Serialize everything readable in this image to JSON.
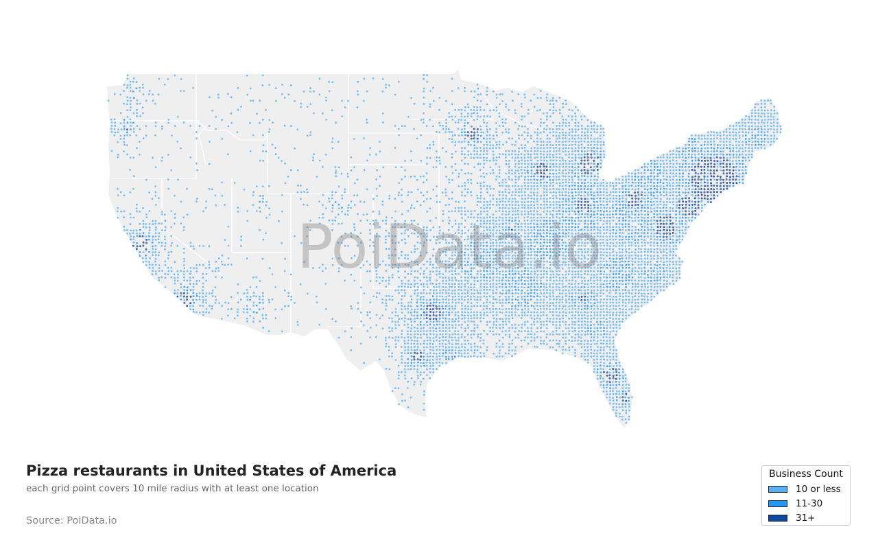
{
  "map": {
    "watermark": "PoiData.io",
    "land_color": "#efefef",
    "border_color": "#ffffff",
    "dot_colors": {
      "low": "#5ab0f5",
      "mid": "#2196f3",
      "high": "#0d3d8f"
    }
  },
  "title": "Pizza restaurants in United States of America",
  "subtitle": "each grid point covers 10 mile radius with at least one location",
  "source": "Source: PoiData.io",
  "legend": {
    "title": "Business Count",
    "items": [
      {
        "label": "10 or less",
        "color": "#5ab0f5"
      },
      {
        "label": "11-30",
        "color": "#2196f3"
      },
      {
        "label": "31+",
        "color": "#0d47a1"
      }
    ]
  }
}
